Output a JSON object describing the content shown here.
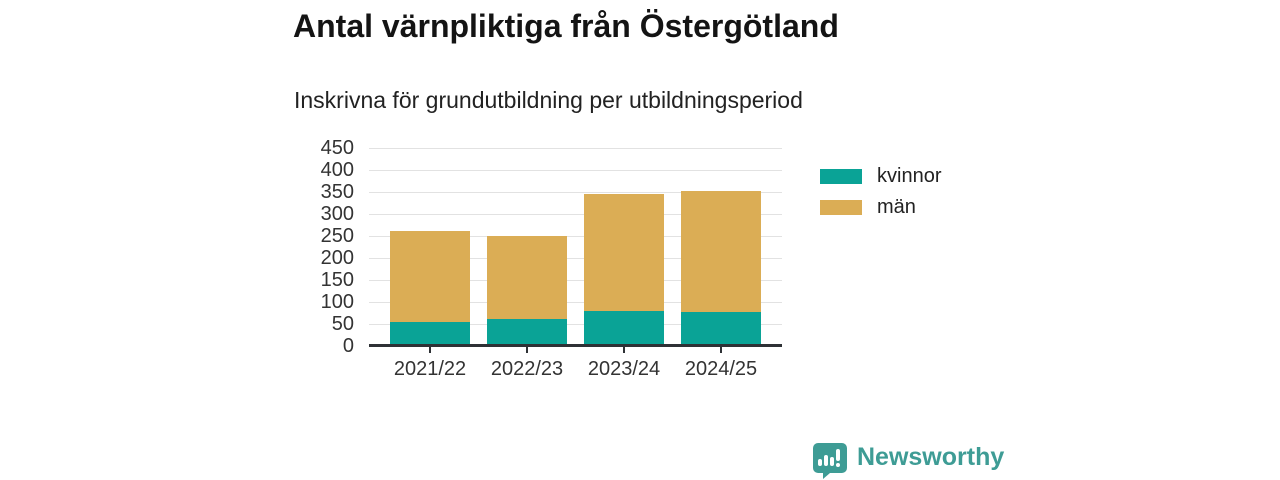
{
  "header": {
    "title": "Antal värnpliktiga från Östergötland",
    "subtitle": "Inskrivna för grundutbildning per utbildningsperiod"
  },
  "chart_data": {
    "type": "bar",
    "stacked": true,
    "title": "Antal värnpliktiga från Östergötland",
    "subtitle": "Inskrivna för grundutbildning per utbildningsperiod",
    "categories": [
      "2021/22",
      "2022/23",
      "2023/24",
      "2024/25"
    ],
    "series": [
      {
        "name": "kvinnor",
        "color": "#0aa396",
        "values": [
          55,
          62,
          80,
          77
        ]
      },
      {
        "name": "män",
        "color": "#dbad55",
        "values": [
          207,
          188,
          266,
          275
        ]
      }
    ],
    "stack_totals": [
      262,
      250,
      346,
      352
    ],
    "xlabel": "",
    "ylabel": "",
    "ylim": [
      0,
      450
    ],
    "ytick_step": 50,
    "yticks": [
      0,
      50,
      100,
      150,
      200,
      250,
      300,
      350,
      400,
      450
    ],
    "grid": "horizontal",
    "legend_position": "right",
    "axis_color": "#2e3135",
    "gridline_color": "#e2e2e2"
  },
  "branding": {
    "logo_text": "Newsworthy",
    "logo_color": "#3e9c95",
    "logo_icon": "newsworthy-speech-bubble-bar-chart-icon"
  }
}
